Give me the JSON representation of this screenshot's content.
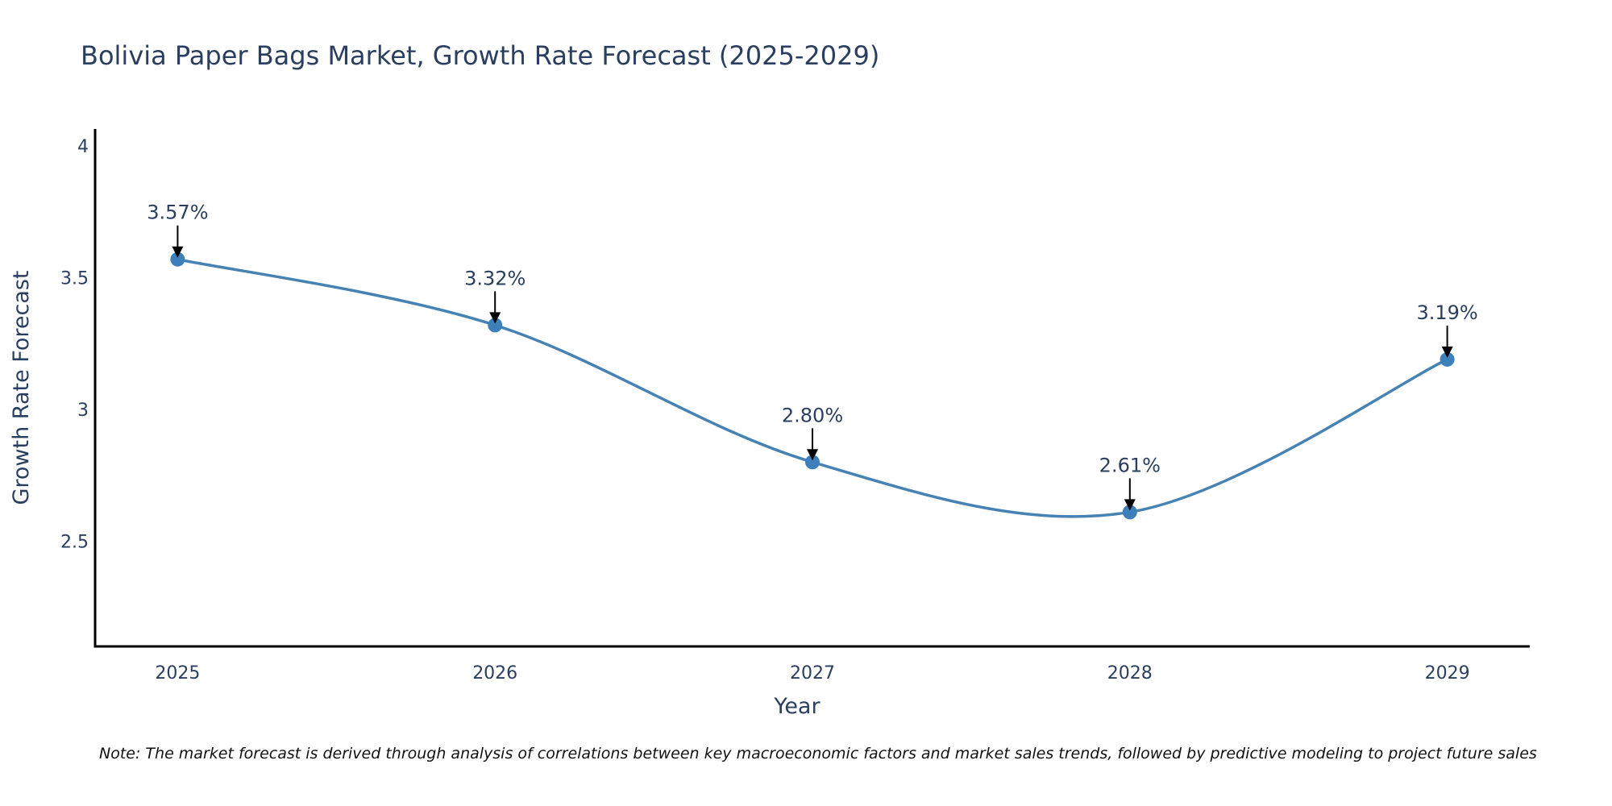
{
  "chart_data": {
    "type": "line",
    "title": "Bolivia Paper Bags Market, Growth Rate Forecast (2025-2029)",
    "xlabel": "Year",
    "ylabel": "Growth Rate Forecast",
    "x": [
      2025,
      2026,
      2027,
      2028,
      2029
    ],
    "series": [
      {
        "name": "Growth Rate Forecast",
        "values": [
          3.57,
          3.32,
          2.8,
          2.61,
          3.19
        ],
        "color": "#4682b4"
      }
    ],
    "annotations": [
      "3.57%",
      "3.32%",
      "2.80%",
      "2.61%",
      "3.19%"
    ],
    "xticks": [
      "2025",
      "2026",
      "2027",
      "2028",
      "2029"
    ],
    "yticks": [
      2.5,
      3,
      3.5,
      4
    ],
    "ytick_labels": [
      "2.5",
      "3",
      "3.5",
      "4"
    ],
    "xlim": [
      2024.74,
      2029.26
    ],
    "ylim": [
      2.1,
      4.065
    ],
    "grid": false,
    "line_shape": "spline",
    "marker_color": "#3d7fba",
    "note": "Note: The market forecast is derived through analysis of correlations between key macroeconomic factors and market sales trends, followed by predictive modeling to project future sales"
  }
}
